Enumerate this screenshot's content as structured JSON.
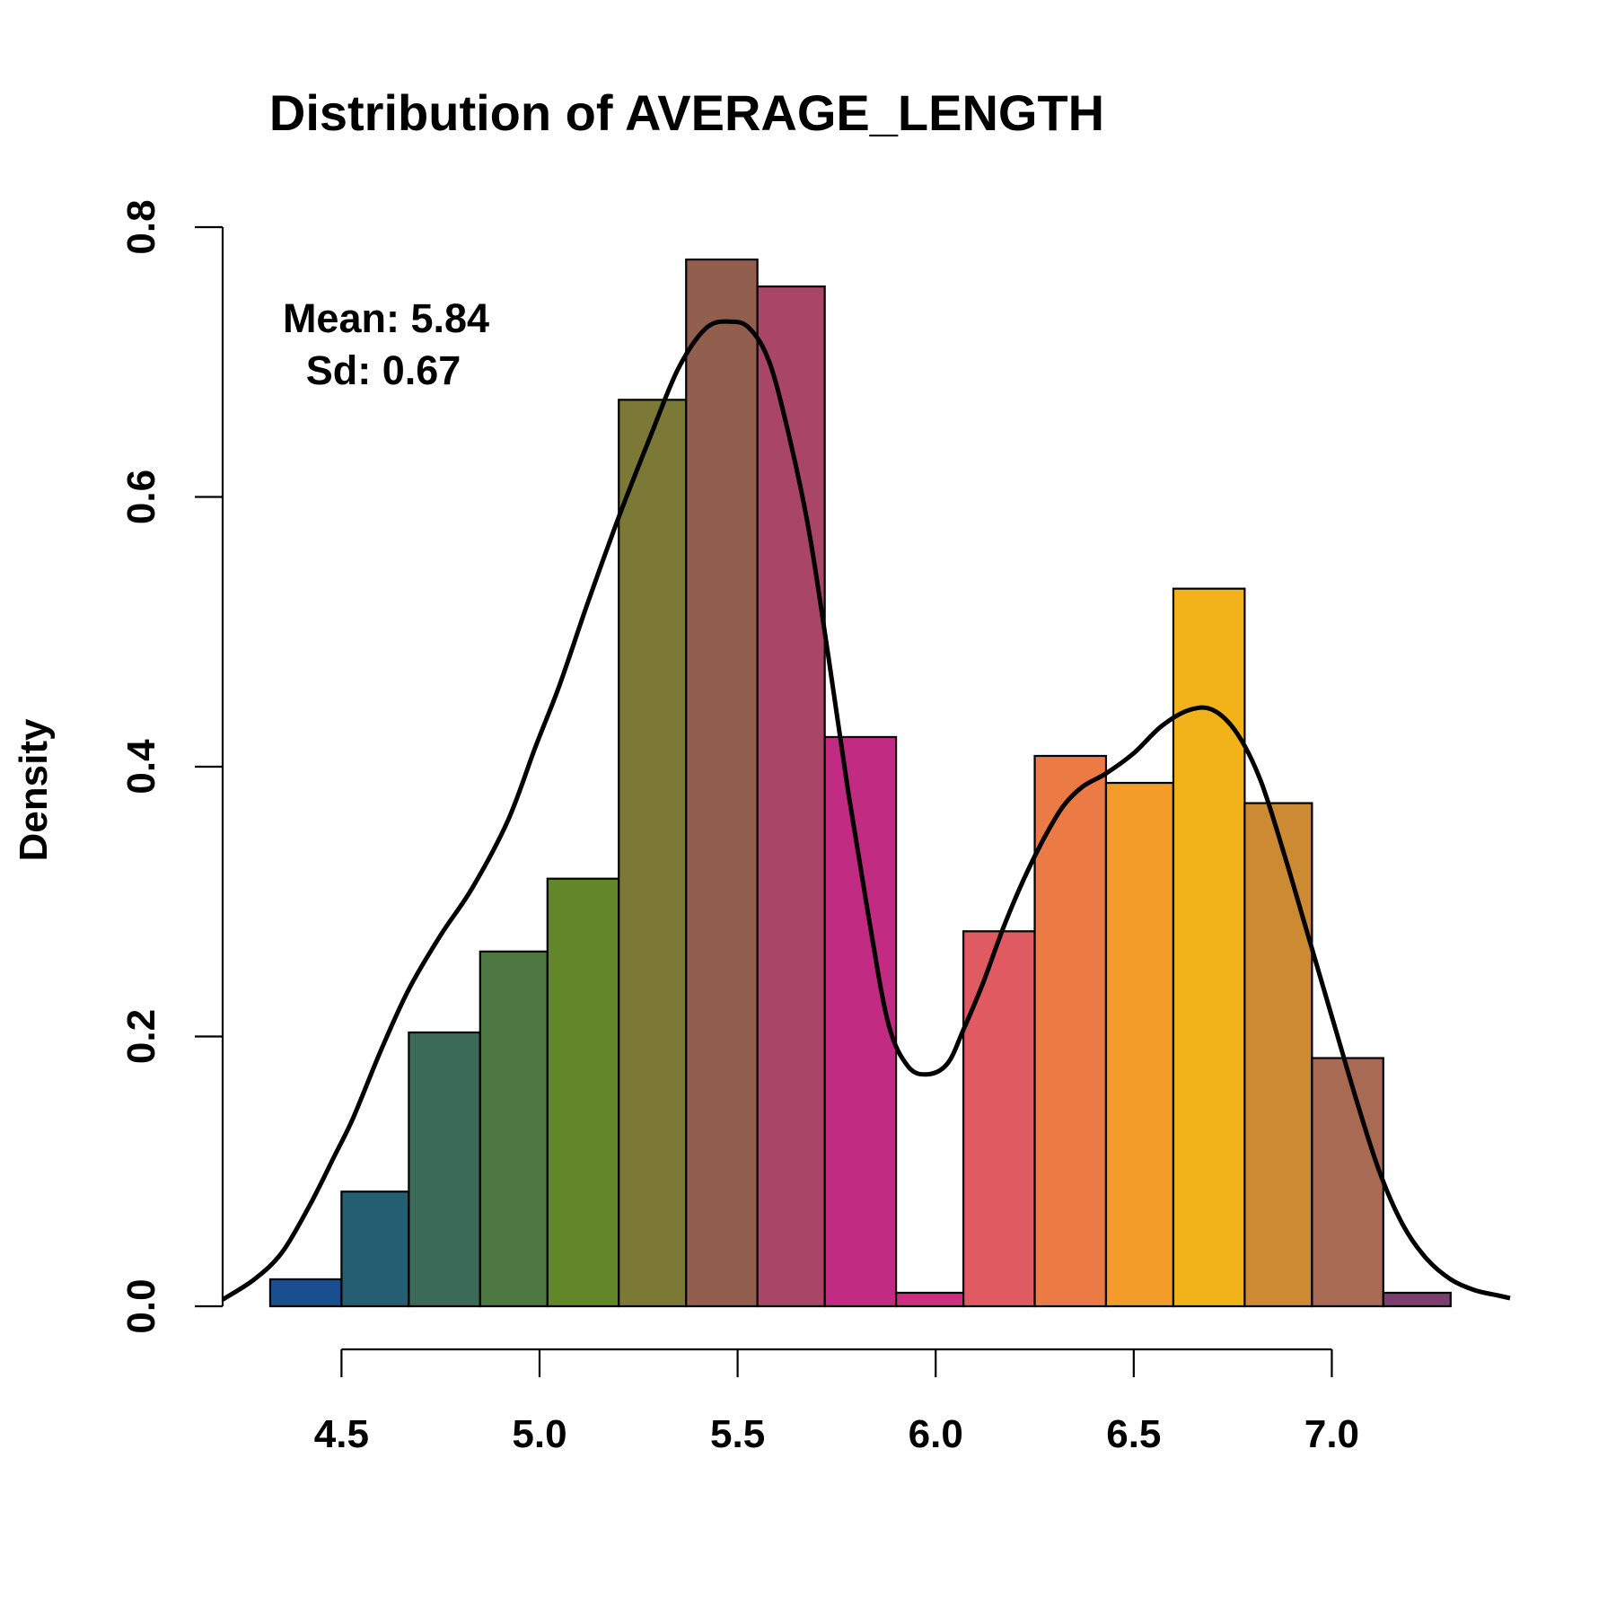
{
  "chart_data": {
    "type": "histogram",
    "title": "Distribution of AVERAGE_LENGTH",
    "xlabel": "",
    "ylabel": "Density",
    "xlim": [
      4.2,
      7.45
    ],
    "ylim": [
      0,
      0.8
    ],
    "x_ticks": [
      "4.5",
      "5.0",
      "5.5",
      "6.0",
      "6.5",
      "7.0"
    ],
    "x_tick_values": [
      4.5,
      5.0,
      5.5,
      6.0,
      6.5,
      7.0
    ],
    "y_ticks": [
      "0.0",
      "0.2",
      "0.4",
      "0.6",
      "0.8"
    ],
    "y_tick_values": [
      0.0,
      0.2,
      0.4,
      0.6,
      0.8
    ],
    "grid": false,
    "bin_edges": [
      4.32,
      4.5,
      4.67,
      4.85,
      5.02,
      5.2,
      5.37,
      5.55,
      5.72,
      5.9,
      6.07,
      6.25,
      6.43,
      6.6,
      6.78,
      6.95,
      7.13,
      7.3
    ],
    "densities": [
      0.02,
      0.085,
      0.203,
      0.263,
      0.317,
      0.672,
      0.776,
      0.756,
      0.422,
      0.01,
      0.278,
      0.408,
      0.388,
      0.532,
      0.373,
      0.184,
      0.01
    ],
    "bar_colors": [
      "#1a4f8f",
      "#255e72",
      "#3c6a58",
      "#4d7841",
      "#62862a",
      "#7c7835",
      "#925e4e",
      "#a94566",
      "#c22b82",
      "#cc2f7f",
      "#e05a62",
      "#ec7a45",
      "#f39c2a",
      "#f2b31a",
      "#cc8a32",
      "#a86a52",
      "#7a3f6e"
    ],
    "density_curve": {
      "x": [
        4.2,
        4.28,
        4.35,
        4.42,
        4.48,
        4.53,
        4.6,
        4.67,
        4.75,
        4.83,
        4.92,
        4.99,
        5.05,
        5.12,
        5.2,
        5.28,
        5.35,
        5.42,
        5.48,
        5.53,
        5.58,
        5.63,
        5.68,
        5.73,
        5.78,
        5.83,
        5.88,
        5.93,
        5.98,
        6.03,
        6.07,
        6.12,
        6.17,
        6.22,
        6.27,
        6.32,
        6.37,
        6.43,
        6.5,
        6.57,
        6.64,
        6.7,
        6.76,
        6.82,
        6.88,
        6.94,
        7.0,
        7.06,
        7.12,
        7.18,
        7.24,
        7.3,
        7.36,
        7.42,
        7.45
      ],
      "y": [
        0.005,
        0.02,
        0.04,
        0.075,
        0.11,
        0.14,
        0.19,
        0.235,
        0.275,
        0.31,
        0.36,
        0.415,
        0.46,
        0.52,
        0.585,
        0.645,
        0.695,
        0.725,
        0.73,
        0.725,
        0.7,
        0.645,
        0.575,
        0.48,
        0.38,
        0.29,
        0.21,
        0.178,
        0.172,
        0.18,
        0.205,
        0.24,
        0.28,
        0.315,
        0.345,
        0.37,
        0.385,
        0.395,
        0.41,
        0.43,
        0.442,
        0.442,
        0.425,
        0.39,
        0.335,
        0.275,
        0.215,
        0.155,
        0.1,
        0.06,
        0.035,
        0.02,
        0.012,
        0.008,
        0.006
      ],
      "color": "#000000"
    },
    "annotations": [
      {
        "label": "Mean: 5.84"
      },
      {
        "label": "Sd: 0.67"
      }
    ]
  }
}
